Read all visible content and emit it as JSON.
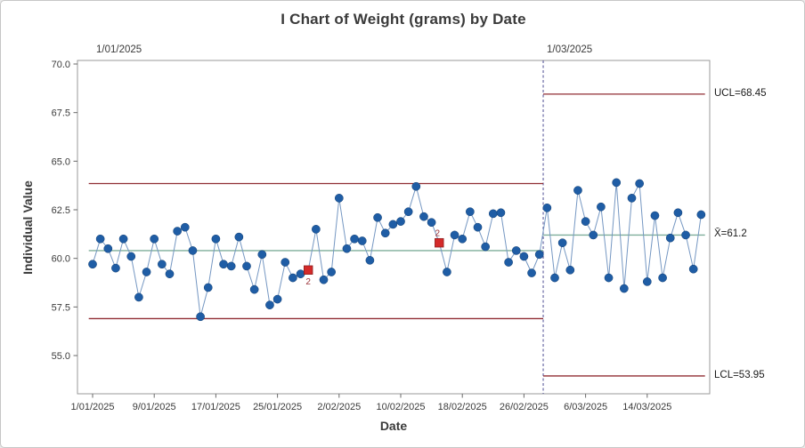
{
  "figure": {
    "title": "I Chart of Weight (grams) by Date",
    "x_axis_label": "Date",
    "y_axis_label": "Individual Value"
  },
  "annotations": {
    "ucl_label": "UCL=68.45",
    "center_label": "X̄=61.2",
    "lcl_label": "LCL=53.95",
    "stage1_label": "1/01/2025",
    "stage2_label": "1/03/2025",
    "test_flag_label": "2"
  },
  "colors": {
    "point_blue": "#1f5da5",
    "point_edge": "#123f73",
    "connect_line_blue": "#7597c2",
    "limit_line_red": "#902d33",
    "center_line_green": "#7fae9b",
    "flagged_marker_red": "#d42a2a",
    "flagged_marker_edge": "#8d1f1f",
    "flag_text_red": "#9b3339",
    "stage_divider_blue": "#4c4c93",
    "axis_text": "#3a3a3a",
    "plot_border_gray": "#9a9a9a"
  },
  "chart_data": {
    "type": "line",
    "subtype": "individuals-control-chart",
    "title": "I Chart of Weight (grams) by Date",
    "xlabel": "Date",
    "ylabel": "Individual Value",
    "grid": false,
    "ylim": [
      53.0,
      70.2
    ],
    "y_ticks": [
      55.0,
      57.5,
      60.0,
      62.5,
      65.0,
      67.5,
      70.0
    ],
    "x_tick_labels": [
      "1/01/2025",
      "9/01/2025",
      "17/01/2025",
      "25/01/2025",
      "2/02/2025",
      "10/02/2025",
      "18/02/2025",
      "26/02/2025",
      "6/03/2025",
      "14/03/2025"
    ],
    "x_tick_days": [
      0,
      8,
      16,
      24,
      32,
      40,
      48,
      56,
      64,
      72
    ],
    "x_start_date": "1/01/2025",
    "x_step": "1 day",
    "values": [
      59.7,
      61.0,
      60.5,
      59.5,
      61.0,
      60.1,
      58.0,
      59.3,
      61.0,
      59.7,
      59.2,
      61.4,
      61.6,
      60.4,
      57.0,
      58.5,
      61.0,
      59.7,
      59.6,
      61.1,
      59.6,
      58.4,
      60.2,
      57.6,
      57.9,
      59.8,
      59.0,
      59.2,
      59.4,
      61.5,
      58.9,
      59.3,
      63.1,
      60.5,
      61.0,
      60.9,
      59.9,
      62.1,
      61.3,
      61.75,
      61.9,
      62.4,
      63.7,
      62.15,
      61.85,
      60.8,
      59.3,
      61.2,
      61.0,
      62.4,
      61.6,
      60.6,
      62.3,
      62.35,
      59.8,
      60.4,
      60.1,
      59.25,
      60.2,
      62.6,
      59.0,
      60.8,
      59.4,
      63.5,
      61.9,
      61.2,
      62.65,
      59.0,
      63.9,
      58.45,
      63.1,
      63.85,
      58.8,
      62.2,
      59.0,
      61.05,
      62.35,
      61.2,
      59.45,
      62.25
    ],
    "flagged_points": [
      {
        "index": 28,
        "label": "2",
        "label_position": "below"
      },
      {
        "index": 45,
        "label": "2",
        "label_position": "above"
      }
    ],
    "stages": [
      {
        "label": "1/01/2025",
        "start_index": 0,
        "end_index": 58,
        "ucl": 63.85,
        "center": 60.4,
        "lcl": 56.9,
        "limits_labeled": false
      },
      {
        "label": "1/03/2025",
        "start_index": 59,
        "end_index": 79,
        "ucl": 68.45,
        "center": 61.2,
        "lcl": 53.95,
        "limits_labeled": true
      }
    ],
    "stage_divider_after_index": 58,
    "legend": null
  }
}
